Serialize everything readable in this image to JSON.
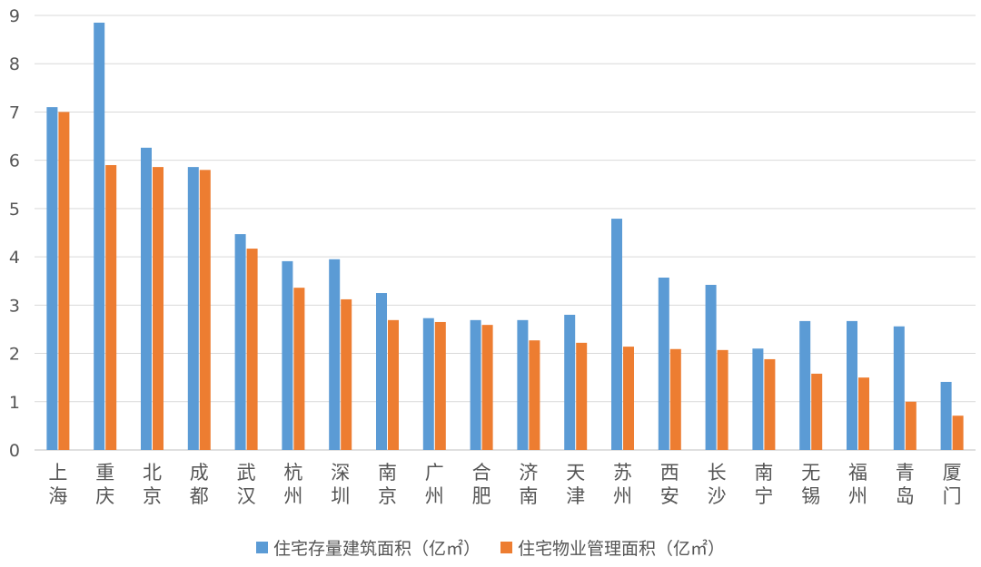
{
  "chart_data": {
    "type": "bar",
    "title": "",
    "xlabel": "",
    "ylabel": "",
    "ylim": [
      0,
      9
    ],
    "yticks": [
      0,
      1,
      2,
      3,
      4,
      5,
      6,
      7,
      8,
      9
    ],
    "grid": true,
    "legend_placement": "bottom",
    "categories": [
      "上海",
      "重庆",
      "北京",
      "成都",
      "武汉",
      "杭州",
      "深圳",
      "南京",
      "广州",
      "合肥",
      "济南",
      "天津",
      "苏州",
      "西安",
      "长沙",
      "南宁",
      "无锡",
      "福州",
      "青岛",
      "厦门"
    ],
    "series": [
      {
        "name": "住宅存量建筑面积（亿㎡）",
        "color": "#5b9bd5",
        "values": [
          7.1,
          8.85,
          6.26,
          5.86,
          4.47,
          3.91,
          3.95,
          3.25,
          2.73,
          2.69,
          2.69,
          2.8,
          4.79,
          3.57,
          3.42,
          2.1,
          2.67,
          2.67,
          2.56,
          1.41
        ]
      },
      {
        "name": "住宅物业管理面积（亿㎡）",
        "color": "#ed7d31",
        "values": [
          7.0,
          5.9,
          5.86,
          5.8,
          4.17,
          3.36,
          3.12,
          2.69,
          2.65,
          2.59,
          2.27,
          2.22,
          2.14,
          2.09,
          2.07,
          1.88,
          1.58,
          1.5,
          1.0,
          0.71
        ]
      }
    ]
  }
}
